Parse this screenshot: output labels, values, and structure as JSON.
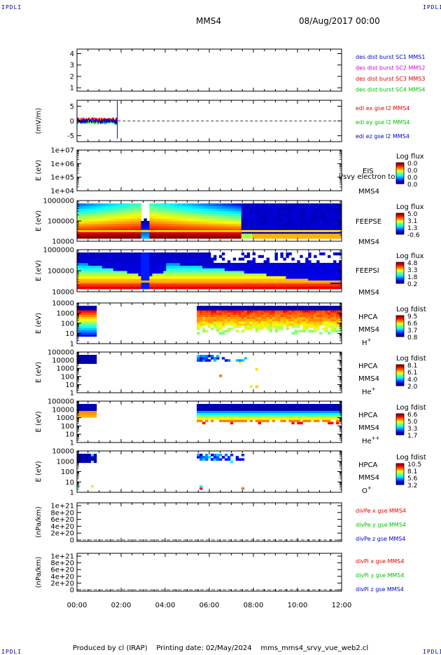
{
  "corner_label": "IPDLI",
  "header": {
    "spacecraft": "MMS4",
    "date": "08/Aug/2017 00:00"
  },
  "footer": {
    "producer": "Produced by cl (IRAP)",
    "printing": "Printing date: 02/May/2024",
    "script": "mms_mms4_srvy_vue_web2.cl"
  },
  "colors": {
    "red": "#e00000",
    "green": "#00c000",
    "blue": "#0000c8",
    "magenta": "#d000d0"
  },
  "x_axis": {
    "ticks": [
      "00:00",
      "02:00",
      "04:00",
      "06:00",
      "08:00",
      "10:00",
      "12:00"
    ],
    "range_hours": [
      0,
      12
    ]
  },
  "chart_data": [
    {
      "type": "line",
      "panel": "des_dist_burst",
      "ylabel": "",
      "yticks": [
        "1",
        "2",
        "3",
        "4"
      ],
      "legend": [
        {
          "label": "des dist burst SC1 MMS1",
          "color": "#0000c8"
        },
        {
          "label": "des dist burst SC2 MMS2",
          "color": "#d000d0"
        },
        {
          "label": "des dist burst SC3 MMS3",
          "color": "#e00000"
        },
        {
          "label": "des dist burst SC4 MMS4",
          "color": "#00c000"
        }
      ]
    },
    {
      "type": "line",
      "panel": "edi_e_gse",
      "ylabel": "(mV/m)",
      "yticks": [
        "-5",
        "0",
        "5"
      ],
      "ylim": [
        -7,
        7
      ],
      "data_coverage_hours": [
        0,
        1.85
      ],
      "zero_line": true,
      "legend": [
        {
          "label": "edi ex gse l2 MMS4",
          "color": "#e00000"
        },
        {
          "label": "edi ey gse l2 MMS4",
          "color": "#00c000"
        },
        {
          "label": "edi ez gse l2 MMS4",
          "color": "#0000c8"
        }
      ]
    },
    {
      "type": "heatmap",
      "panel": "EIS",
      "ylabel": "E (eV)",
      "yticks": [
        "1e+04",
        "1e+05",
        "1e+06",
        "1e+07"
      ],
      "side_labels": [
        "EIS",
        "MMS4"
      ],
      "extra_text": "l/svy electron to",
      "colorbar": {
        "title": "Log flux",
        "ticks": [
          "0.0",
          "0.0",
          "0.0",
          "0.0"
        ]
      }
    },
    {
      "type": "heatmap",
      "panel": "FEEPSE",
      "ylabel": "E (eV)",
      "yticks": [
        "10000",
        "100000",
        "1000000"
      ],
      "side_labels": [
        "FEEPSE",
        "MMS4"
      ],
      "colorbar": {
        "title": "Log flux",
        "ticks": [
          "5.0",
          "3.1",
          "1.3",
          "-0.6"
        ]
      }
    },
    {
      "type": "heatmap",
      "panel": "FEEPSI",
      "ylabel": "E (eV)",
      "yticks": [
        "10000",
        "100000",
        "1000000"
      ],
      "side_labels": [
        "FEEPSI",
        "MMS4"
      ],
      "colorbar": {
        "title": "Log flux",
        "ticks": [
          "4.8",
          "3.3",
          "1.8",
          "0.2"
        ]
      }
    },
    {
      "type": "heatmap",
      "panel": "HPCA_H",
      "ylabel": "E (eV)",
      "yticks": [
        "1",
        "10",
        "100",
        "1000",
        "10000"
      ],
      "side_labels": [
        "HPCA",
        "MMS4"
      ],
      "species": "H",
      "species_sup": "+",
      "data_hours": [
        [
          0,
          0.9
        ],
        [
          5.45,
          12
        ]
      ],
      "colorbar": {
        "title": "Log fdist",
        "ticks": [
          "9.5",
          "6.6",
          "3.7",
          "0.8"
        ]
      }
    },
    {
      "type": "heatmap",
      "panel": "HPCA_He",
      "ylabel": "E (eV)",
      "yticks": [
        "1",
        "10",
        "100",
        "1000",
        "10000",
        "100000"
      ],
      "side_labels": [
        "HPCA",
        "MMS4"
      ],
      "species": "He",
      "species_sup": "+",
      "data_hours": [
        [
          0,
          0.9
        ],
        [
          5.45,
          8.2
        ]
      ],
      "colorbar": {
        "title": "Log fdist",
        "ticks": [
          "8.1",
          "6.1",
          "4.0",
          "2.0"
        ]
      }
    },
    {
      "type": "heatmap",
      "panel": "HPCA_He2",
      "ylabel": "E (eV)",
      "yticks": [
        "1",
        "10",
        "100",
        "1000",
        "10000",
        "100000"
      ],
      "side_labels": [
        "HPCA",
        "MMS4"
      ],
      "species": "He",
      "species_sup": "++",
      "data_hours": [
        [
          0,
          0.9
        ],
        [
          5.45,
          12
        ]
      ],
      "colorbar": {
        "title": "Log fdist",
        "ticks": [
          "6.6",
          "5.0",
          "3.3",
          "1.7"
        ]
      }
    },
    {
      "type": "heatmap",
      "panel": "HPCA_O",
      "ylabel": "E (eV)",
      "yticks": [
        "1",
        "10",
        "100",
        "1000",
        "10000"
      ],
      "side_labels": [
        "HPCA",
        "MMS4"
      ],
      "species": "O",
      "species_sup": "+",
      "data_hours": [
        [
          0,
          0.9
        ],
        [
          5.45,
          7.8
        ]
      ],
      "colorbar": {
        "title": "Log fdist",
        "ticks": [
          "10.5",
          "8.1",
          "5.6",
          "3.2"
        ]
      }
    },
    {
      "type": "line",
      "panel": "divPe",
      "ylabel": "(nPa/km)",
      "yticks": [
        "0",
        "2e+20",
        "4e+20",
        "6e+20",
        "8e+20",
        "1e+21"
      ],
      "zero_line": true,
      "legend": [
        {
          "label": "divPe x gse MMS4",
          "color": "#e00000"
        },
        {
          "label": "divPe y gse MMS4",
          "color": "#00c000"
        },
        {
          "label": "divPe z gse MMS4",
          "color": "#0000c8"
        }
      ]
    },
    {
      "type": "line",
      "panel": "divPi",
      "ylabel": "(nPa/km)",
      "yticks": [
        "0",
        "2e+20",
        "4e+20",
        "6e+20",
        "8e+20",
        "1e+21"
      ],
      "zero_line": true,
      "legend": [
        {
          "label": "divPi x gse MMS4",
          "color": "#e00000"
        },
        {
          "label": "divPi y gse MMS4",
          "color": "#00c000"
        },
        {
          "label": "divPi z gse MMS4",
          "color": "#0000c8"
        }
      ]
    }
  ]
}
